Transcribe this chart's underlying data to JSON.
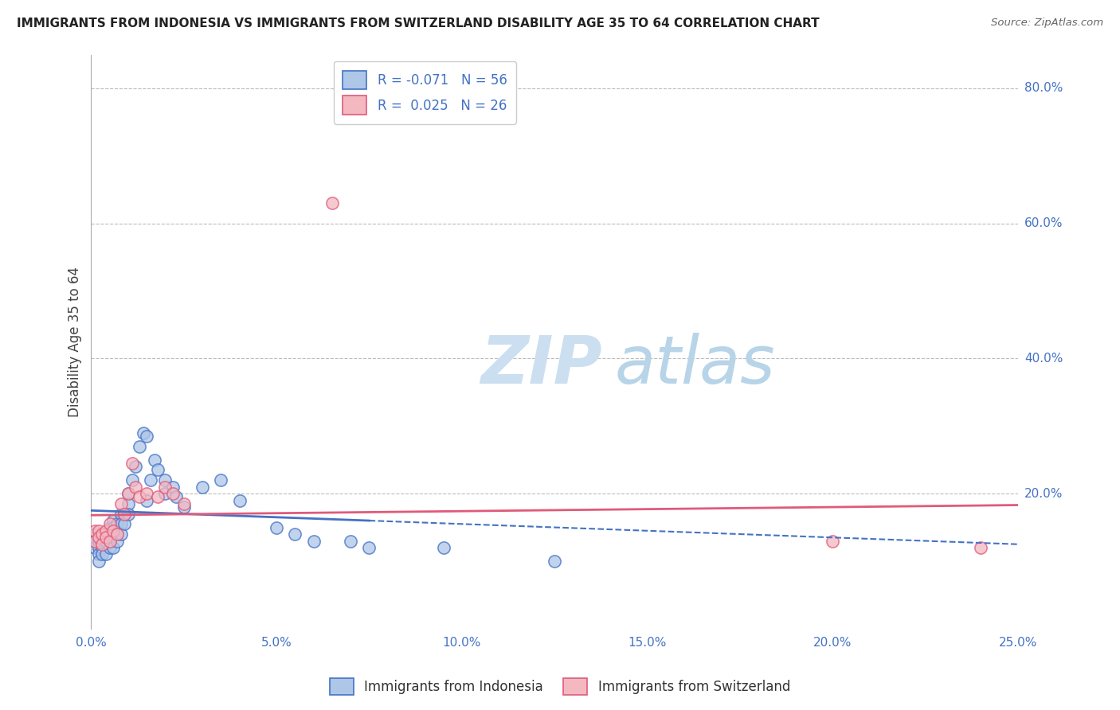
{
  "title": "IMMIGRANTS FROM INDONESIA VS IMMIGRANTS FROM SWITZERLAND DISABILITY AGE 35 TO 64 CORRELATION CHART",
  "source": "Source: ZipAtlas.com",
  "ylabel": "Disability Age 35 to 64",
  "xlim": [
    0.0,
    0.25
  ],
  "ylim": [
    0.0,
    0.85
  ],
  "xtick_labels": [
    "0.0%",
    "5.0%",
    "10.0%",
    "15.0%",
    "20.0%",
    "25.0%"
  ],
  "xtick_values": [
    0.0,
    0.05,
    0.1,
    0.15,
    0.2,
    0.25
  ],
  "ytick_labels": [
    "20.0%",
    "40.0%",
    "60.0%",
    "80.0%"
  ],
  "ytick_values": [
    0.2,
    0.4,
    0.6,
    0.8
  ],
  "R_indonesia": -0.071,
  "N_indonesia": 56,
  "R_switzerland": 0.025,
  "N_switzerland": 26,
  "legend1_label": "Immigrants from Indonesia",
  "legend2_label": "Immigrants from Switzerland",
  "color_indonesia": "#aec6e8",
  "color_switzerland": "#f4b8c1",
  "color_indonesia_edge": "#4472c4",
  "color_switzerland_edge": "#e05a7a",
  "watermark_zip": "ZIP",
  "watermark_atlas": "atlas",
  "ind_x": [
    0.001,
    0.001,
    0.001,
    0.002,
    0.002,
    0.002,
    0.002,
    0.003,
    0.003,
    0.003,
    0.004,
    0.004,
    0.004,
    0.005,
    0.005,
    0.005,
    0.005,
    0.006,
    0.006,
    0.006,
    0.006,
    0.007,
    0.007,
    0.007,
    0.008,
    0.008,
    0.008,
    0.009,
    0.009,
    0.01,
    0.01,
    0.01,
    0.011,
    0.012,
    0.013,
    0.014,
    0.015,
    0.015,
    0.016,
    0.017,
    0.018,
    0.02,
    0.02,
    0.022,
    0.023,
    0.025,
    0.03,
    0.035,
    0.04,
    0.05,
    0.055,
    0.06,
    0.07,
    0.075,
    0.095,
    0.125
  ],
  "ind_y": [
    0.14,
    0.13,
    0.12,
    0.13,
    0.12,
    0.11,
    0.1,
    0.13,
    0.12,
    0.11,
    0.14,
    0.13,
    0.11,
    0.15,
    0.14,
    0.13,
    0.12,
    0.16,
    0.15,
    0.14,
    0.12,
    0.155,
    0.14,
    0.13,
    0.17,
    0.155,
    0.14,
    0.17,
    0.155,
    0.2,
    0.185,
    0.17,
    0.22,
    0.24,
    0.27,
    0.29,
    0.285,
    0.19,
    0.22,
    0.25,
    0.235,
    0.22,
    0.2,
    0.21,
    0.195,
    0.18,
    0.21,
    0.22,
    0.19,
    0.15,
    0.14,
    0.13,
    0.13,
    0.12,
    0.12,
    0.1
  ],
  "sw_x": [
    0.001,
    0.001,
    0.002,
    0.002,
    0.003,
    0.003,
    0.004,
    0.004,
    0.005,
    0.005,
    0.006,
    0.007,
    0.008,
    0.009,
    0.01,
    0.011,
    0.012,
    0.013,
    0.015,
    0.018,
    0.02,
    0.022,
    0.025,
    0.065,
    0.2,
    0.24
  ],
  "sw_y": [
    0.145,
    0.13,
    0.145,
    0.135,
    0.14,
    0.125,
    0.145,
    0.135,
    0.155,
    0.13,
    0.145,
    0.14,
    0.185,
    0.17,
    0.2,
    0.245,
    0.21,
    0.195,
    0.2,
    0.195,
    0.21,
    0.2,
    0.185,
    0.63,
    0.13,
    0.12
  ],
  "trend_ind_x1": 0.0,
  "trend_ind_y1": 0.175,
  "trend_ind_x2": 0.25,
  "trend_ind_y2": 0.125,
  "trend_ind_solid_end": 0.075,
  "trend_sw_x1": 0.0,
  "trend_sw_y1": 0.168,
  "trend_sw_x2": 0.25,
  "trend_sw_y2": 0.183
}
